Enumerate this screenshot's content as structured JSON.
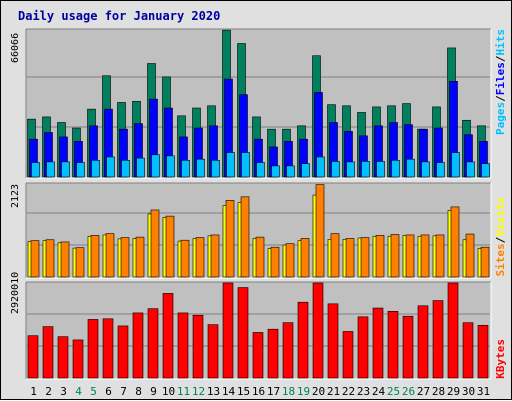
{
  "title": "Daily usage for January 2020",
  "panels": {
    "top": {
      "max_label": "66066",
      "legend": [
        "Pages",
        "/",
        "Files",
        "/",
        "Hits"
      ],
      "legend_colors": [
        "#00c0ff",
        "#000000",
        "#0000ff",
        "#000000",
        "#00c0ff"
      ]
    },
    "mid": {
      "max_label": "2123",
      "legend": [
        "Sites",
        "/",
        "Visits"
      ],
      "legend_colors": [
        "#ff8000",
        "#000000",
        "#ffff00"
      ]
    },
    "bot": {
      "max_label": "2920010",
      "legend": [
        "KBytes"
      ],
      "legend_colors": [
        "#ff0000"
      ]
    }
  },
  "colors": {
    "hits": "#00805f",
    "files": "#0000ff",
    "pages": "#00c0ff",
    "visits": "#ffff00",
    "sites": "#ff8000",
    "kbytes": "#ff0000",
    "weekend_label": "#00805f",
    "weekday_label": "#000000",
    "panel_bg": "#c0c0c0",
    "title": "#0000a0"
  },
  "chart_data": [
    {
      "type": "bar",
      "title": "Daily usage for January 2020",
      "categories": [
        "1",
        "2",
        "3",
        "4",
        "5",
        "6",
        "7",
        "8",
        "9",
        "10",
        "11",
        "12",
        "13",
        "14",
        "15",
        "16",
        "17",
        "18",
        "19",
        "20",
        "21",
        "22",
        "23",
        "24",
        "25",
        "26",
        "27",
        "28",
        "29",
        "30",
        "31"
      ],
      "ylim": [
        0,
        66066
      ],
      "weekend_days": [
        4,
        5,
        11,
        12,
        18,
        19,
        25,
        26
      ],
      "series": [
        {
          "name": "Hits",
          "values": [
            26000,
            27000,
            24500,
            22000,
            30500,
            45500,
            33500,
            34000,
            51000,
            45000,
            27500,
            31000,
            32000,
            66000,
            60000,
            27000,
            21500,
            21500,
            23000,
            54500,
            32500,
            32000,
            29000,
            31500,
            32000,
            33000,
            21500,
            31500,
            58000,
            25500,
            23000
          ]
        },
        {
          "name": "Files",
          "values": [
            17000,
            20000,
            18000,
            16000,
            23000,
            30500,
            21500,
            24000,
            35000,
            31000,
            18000,
            22000,
            23000,
            44000,
            37000,
            17000,
            13500,
            16000,
            17000,
            38000,
            24500,
            20500,
            18500,
            23000,
            24500,
            23500,
            21500,
            22000,
            43000,
            19000,
            16000
          ]
        },
        {
          "name": "Pages",
          "values": [
            6500,
            6800,
            6800,
            6500,
            7500,
            9000,
            7500,
            8500,
            10000,
            9500,
            7500,
            8000,
            7500,
            11000,
            11000,
            6500,
            5000,
            5000,
            6000,
            9000,
            7000,
            6800,
            7000,
            7000,
            7500,
            8000,
            6800,
            6500,
            11000,
            6800,
            6000
          ]
        }
      ]
    },
    {
      "type": "bar",
      "categories": [
        "1",
        "2",
        "3",
        "4",
        "5",
        "6",
        "7",
        "8",
        "9",
        "10",
        "11",
        "12",
        "13",
        "14",
        "15",
        "16",
        "17",
        "18",
        "19",
        "20",
        "21",
        "22",
        "23",
        "24",
        "25",
        "26",
        "27",
        "28",
        "29",
        "30",
        "31"
      ],
      "ylim": [
        0,
        2123
      ],
      "series": [
        {
          "name": "Visits",
          "values": [
            810,
            830,
            780,
            660,
            930,
            960,
            870,
            880,
            1440,
            1360,
            820,
            880,
            940,
            1630,
            1700,
            880,
            650,
            730,
            830,
            1870,
            860,
            860,
            890,
            930,
            930,
            950,
            930,
            940,
            1520,
            850,
            650
          ]
        },
        {
          "name": "Sites",
          "values": [
            830,
            850,
            800,
            670,
            950,
            990,
            900,
            910,
            1530,
            1390,
            840,
            900,
            960,
            1750,
            1830,
            910,
            680,
            760,
            880,
            2110,
            990,
            880,
            900,
            950,
            970,
            960,
            960,
            960,
            1600,
            980,
            680
          ]
        }
      ]
    },
    {
      "type": "bar",
      "categories": [
        "1",
        "2",
        "3",
        "4",
        "5",
        "6",
        "7",
        "8",
        "9",
        "10",
        "11",
        "12",
        "13",
        "14",
        "15",
        "16",
        "17",
        "18",
        "19",
        "20",
        "21",
        "22",
        "23",
        "24",
        "25",
        "26",
        "27",
        "28",
        "29",
        "30",
        "31"
      ],
      "ylim": [
        0,
        2920010
      ],
      "series": [
        {
          "name": "KBytes",
          "values": [
            1300000,
            1580000,
            1270000,
            1170000,
            1800000,
            1820000,
            1600000,
            2000000,
            2130000,
            2600000,
            2000000,
            1930000,
            1640000,
            2920000,
            2780000,
            1400000,
            1500000,
            1700000,
            2330000,
            2920000,
            2280000,
            1430000,
            1880000,
            2150000,
            2050000,
            1900000,
            2220000,
            2380000,
            2920000,
            1700000,
            1620000
          ]
        }
      ]
    }
  ]
}
